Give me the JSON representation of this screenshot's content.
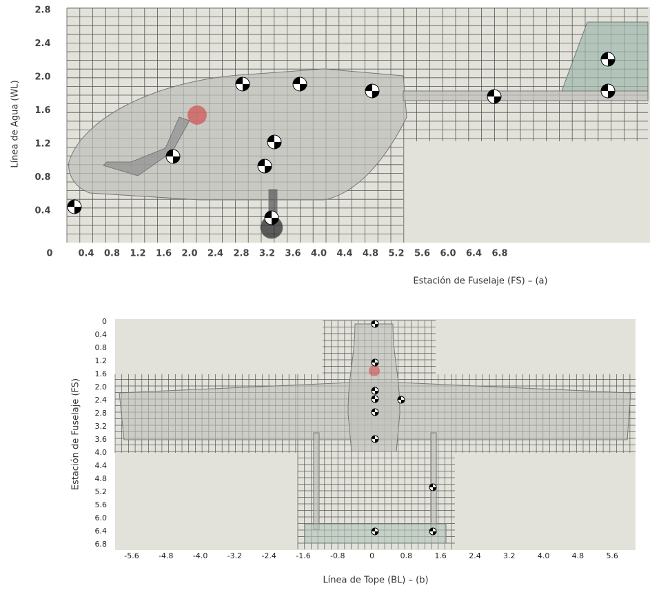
{
  "panel_a": {
    "y_label": "Línea de Agua (WL)",
    "x_label": "Estación de Fuselaje (FS) – (a)",
    "yticks": [
      "2.8",
      "2.4",
      "2.0",
      "1.6",
      "1.2",
      "0.8",
      "0.4"
    ],
    "xticks": [
      "0",
      "0.4",
      "0.8",
      "1.2",
      "1.6",
      "2.0",
      "2.4",
      "2.8",
      "3.2",
      "3.6",
      "4.0",
      "4.4",
      "4.8",
      "5.2",
      "5.6",
      "6.0",
      "6.4",
      "6.8"
    ]
  },
  "panel_b": {
    "y_label": "Estación de Fuselaje (FS)",
    "x_label": "Línea de Tope (BL) – (b)",
    "yticks": [
      "0",
      "0.4",
      "0.8",
      "1.2",
      "1.6",
      "2.0",
      "2.4",
      "2.8",
      "3.2",
      "3.6",
      "4.0",
      "4.4",
      "4.8",
      "5.2",
      "5.6",
      "6.0",
      "6.4",
      "6.8"
    ],
    "xticks": [
      "-5.6",
      "-4.8",
      "-4.0",
      "-3.2",
      "-2.4",
      "-1.6",
      "-0.8",
      "0",
      "0.8",
      "1.6",
      "2.4",
      "3.2",
      "4.0",
      "4.8",
      "5.6"
    ]
  }
}
